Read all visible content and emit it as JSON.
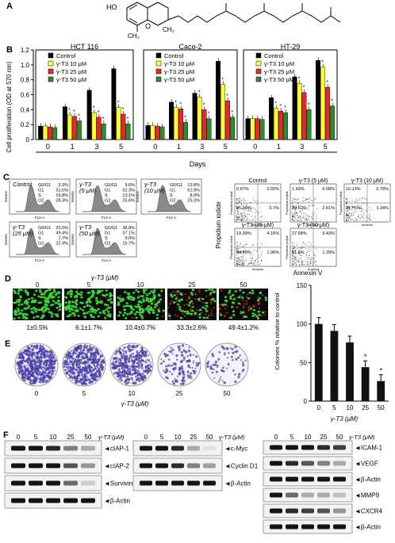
{
  "panels": {
    "A": "A",
    "B": "B",
    "C": "C",
    "D": "D",
    "E": "E",
    "F": "F"
  },
  "molecule": {
    "ho": "HO",
    "o": "O",
    "ch3": "CH₃"
  },
  "panelB": {
    "ylabel": "Cell proliferation (OD at 570 nm)",
    "xlabel": "Days",
    "legend": [
      "Control",
      "γ-T3 10 μM",
      "γ-T3 25 μM",
      "γ-T3 50 μM"
    ],
    "colors": [
      "#000000",
      "#ffff33",
      "#e8262b",
      "#2e8b2e"
    ],
    "ylim": [
      0,
      1.2
    ],
    "yticks": [
      "0",
      "0.2",
      "0.4",
      "0.6",
      "0.8",
      "1.0",
      "1.2"
    ],
    "days": [
      "0",
      "1",
      "3",
      "5"
    ]
  },
  "chart_data": [
    {
      "type": "bar",
      "title": "HCT 116",
      "categories": [
        "0",
        "1",
        "3",
        "5"
      ],
      "series": [
        {
          "name": "Control",
          "values": [
            0.18,
            0.44,
            0.66,
            0.95
          ]
        },
        {
          "name": "γ-T3 10 μM",
          "values": [
            0.18,
            0.33,
            0.36,
            0.43
          ]
        },
        {
          "name": "γ-T3 25 μM",
          "values": [
            0.17,
            0.31,
            0.3,
            0.34
          ]
        },
        {
          "name": "γ-T3 50 μM",
          "values": [
            0.16,
            0.25,
            0.21,
            0.21
          ]
        }
      ],
      "xlabel": "Days",
      "ylabel": "Cell proliferation (OD at 570 nm)",
      "ylim": [
        0,
        1.2
      ]
    },
    {
      "type": "bar",
      "title": "Caco-2",
      "categories": [
        "0",
        "1",
        "3",
        "5"
      ],
      "series": [
        {
          "name": "Control",
          "values": [
            0.19,
            0.5,
            0.62,
            1.05
          ]
        },
        {
          "name": "γ-T3 10 μM",
          "values": [
            0.19,
            0.43,
            0.57,
            0.74
          ]
        },
        {
          "name": "γ-T3 25 μM",
          "values": [
            0.18,
            0.41,
            0.4,
            0.52
          ]
        },
        {
          "name": "γ-T3 50 μM",
          "values": [
            0.17,
            0.23,
            0.28,
            0.3
          ]
        }
      ],
      "xlabel": "Days",
      "ylabel": "Cell proliferation (OD at 570 nm)",
      "ylim": [
        0,
        1.2
      ]
    },
    {
      "type": "bar",
      "title": "HT-29",
      "categories": [
        "0",
        "1",
        "3",
        "5"
      ],
      "series": [
        {
          "name": "Control",
          "values": [
            0.28,
            0.56,
            0.84,
            1.06
          ]
        },
        {
          "name": "γ-T3 10 μM",
          "values": [
            0.28,
            0.42,
            0.75,
            0.97
          ]
        },
        {
          "name": "γ-T3 25 μM",
          "values": [
            0.28,
            0.38,
            0.63,
            0.7
          ]
        },
        {
          "name": "γ-T3 50 μM",
          "values": [
            0.27,
            0.36,
            0.4,
            0.45
          ]
        }
      ],
      "xlabel": "Days",
      "ylabel": "Cell proliferation (OD at 570 nm)",
      "ylim": [
        0,
        1.2
      ]
    },
    {
      "type": "bar",
      "title": "",
      "categories": [
        "0",
        "5",
        "10",
        "25",
        "50"
      ],
      "values": [
        100,
        91,
        76,
        44,
        26
      ],
      "xlabel": "γ-T3 (μM)",
      "ylabel": "Colonies % relative to control",
      "ylim": [
        0,
        150
      ],
      "yticks": [
        "0",
        "50",
        "100",
        "150"
      ]
    }
  ],
  "panelC": {
    "histograms": [
      {
        "title": "Control",
        "rows": [
          [
            "G0/G1",
            "3.3%"
          ],
          [
            "G1",
            "51.6%"
          ],
          [
            "S",
            "16.8%"
          ],
          [
            "G2",
            "28.3%"
          ]
        ],
        "ylab": "Events",
        "xlab": "FL2-A"
      },
      {
        "title": "γ-T3\n(5 μM)",
        "rows": [
          [
            "G0/G1",
            "9.0%"
          ],
          [
            "G1",
            "52.3%"
          ],
          [
            "S",
            "13.1%"
          ],
          [
            "G2",
            "25.6%"
          ]
        ],
        "ylab": "Events",
        "xlab": "FL2-A"
      },
      {
        "title": "γ-T3\n(10 μM)",
        "rows": [
          [
            "G0/G1",
            "13.8%"
          ],
          [
            "G1",
            "51.9%"
          ],
          [
            "S",
            "8.9%"
          ],
          [
            "G2",
            "25.3%"
          ]
        ],
        "ylab": "Events",
        "xlab": "FL2-A"
      },
      {
        "title": "γ-T3\n(25 μM)",
        "rows": [
          [
            "G0/G1",
            "20.5%"
          ],
          [
            "G1",
            "49.4%"
          ],
          [
            "S",
            "7.7%"
          ],
          [
            "G2",
            "22.4%"
          ]
        ],
        "ylab": "Events",
        "xlab": "FL2-A"
      },
      {
        "title": "γ-T3\n(50 μM)",
        "rows": [
          [
            "G0/G1",
            "38.8%"
          ],
          [
            "G1",
            "37.1%"
          ],
          [
            "S",
            "9.0%"
          ],
          [
            "G2",
            "15.7%"
          ]
        ],
        "ylab": "Events",
        "xlab": "FL2-A"
      }
    ],
    "scatter": [
      {
        "title": "Control",
        "q": [
          "0.67%",
          "2.65%",
          "95.98%",
          "0.7%"
        ]
      },
      {
        "title": "γ-T3 (5 μM)",
        "q": [
          "1.69%",
          "6.08%",
          "89.62%",
          "2.61%"
        ]
      },
      {
        "title": "γ-T3 (10 μM)",
        "q": [
          "10.13%",
          "6.78%",
          "81.75%",
          "1.34%"
        ]
      },
      {
        "title": "γ-T3 (25 μM)",
        "q": [
          "19.39%",
          "4.16%",
          "74.49%",
          "1.96%"
        ]
      },
      {
        "title": "γ-T3 (50 μM)",
        "q": [
          "27.58%",
          "9.43%",
          "61.6%",
          "1.39%"
        ]
      }
    ],
    "ylabel": "Propidium iodide",
    "xlabel": "Annexin V",
    "ax_y": "Propidium iodide",
    "ax_x": "Annexin"
  },
  "panelD": {
    "header": "γ-T3 (μM)",
    "doses": [
      "0",
      "5",
      "10",
      "25",
      "50"
    ],
    "values": [
      "1±0.5%",
      "6.1±1.7%",
      "10.4±0.7%",
      "33.3±2.6%",
      "49.4±1.2%"
    ],
    "red_fraction": [
      0.01,
      0.06,
      0.1,
      0.33,
      0.49
    ]
  },
  "panelE": {
    "doses": [
      "0",
      "5",
      "10",
      "25",
      "50"
    ],
    "xlabel": "γ-T3 (μM)",
    "density": [
      1.0,
      0.9,
      0.65,
      0.25,
      0.12
    ]
  },
  "panelF": {
    "header": "γ-T3 (μM)",
    "doses": [
      "0",
      "5",
      "10",
      "25",
      "50"
    ],
    "blot1": [
      "cIAP-1",
      "cIAP-2",
      "Survivin",
      "β-Actin"
    ],
    "blot2": [
      "c-Myc",
      "Cyclin D1",
      "β-Actin"
    ],
    "blot3": [
      "ICAM-1",
      "VEGF",
      "β-Actin",
      "MMP9",
      "CXCR4",
      "β-Actin"
    ]
  }
}
